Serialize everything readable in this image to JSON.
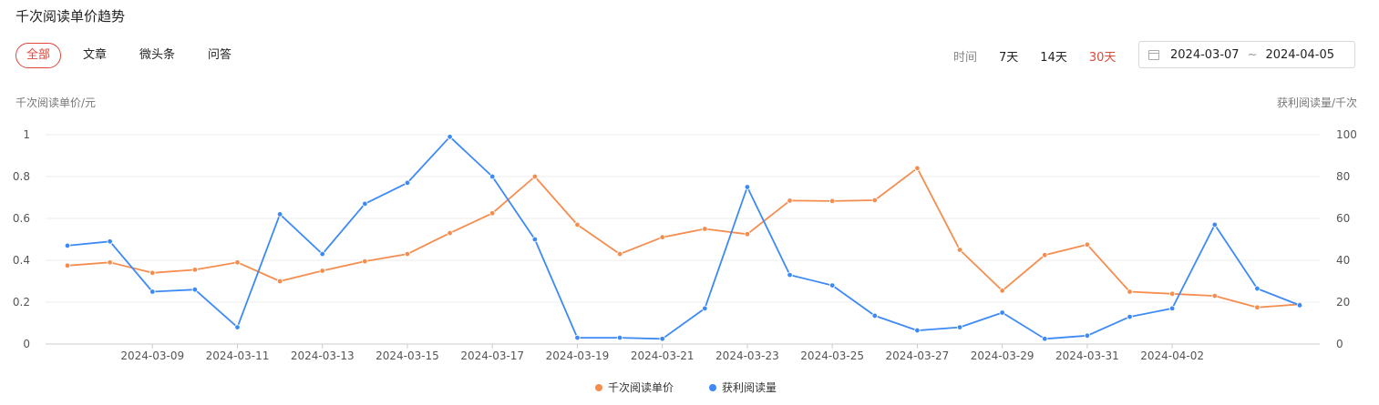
{
  "title": "千次阅读单价趋势",
  "tabs": [
    {
      "label": "全部",
      "active": true
    },
    {
      "label": "文章",
      "active": false
    },
    {
      "label": "微头条",
      "active": false
    },
    {
      "label": "问答",
      "active": false
    }
  ],
  "range": {
    "label": "时间",
    "options": [
      {
        "label": "7天",
        "active": false
      },
      {
        "label": "14天",
        "active": false
      },
      {
        "label": "30天",
        "active": true
      }
    ]
  },
  "date_range": {
    "start": "2024-03-07",
    "separator": "~",
    "end": "2024-04-05"
  },
  "colors": {
    "accent": "#e0483d",
    "price": "#f58d4f",
    "reads": "#3d8af7"
  },
  "chart_data": {
    "type": "line",
    "left_axis_label": "千次阅读单价/元",
    "right_axis_label": "获利阅读量/千次",
    "ylim_left": [
      0,
      1
    ],
    "ylim_right": [
      0,
      100
    ],
    "left_ticks": [
      "0",
      "0.2",
      "0.4",
      "0.6",
      "0.8",
      "1"
    ],
    "right_ticks": [
      "0",
      "20",
      "40",
      "60",
      "80",
      "100"
    ],
    "x": [
      "2024-03-07",
      "2024-03-08",
      "2024-03-09",
      "2024-03-10",
      "2024-03-11",
      "2024-03-12",
      "2024-03-13",
      "2024-03-14",
      "2024-03-15",
      "2024-03-16",
      "2024-03-17",
      "2024-03-18",
      "2024-03-19",
      "2024-03-20",
      "2024-03-21",
      "2024-03-22",
      "2024-03-23",
      "2024-03-24",
      "2024-03-25",
      "2024-03-26",
      "2024-03-27",
      "2024-03-28",
      "2024-03-29",
      "2024-03-30",
      "2024-03-31",
      "2024-04-01",
      "2024-04-02",
      "2024-04-03",
      "2024-04-04",
      "2024-04-05"
    ],
    "x_tick_labels": [
      "2024-03-09",
      "2024-03-11",
      "2024-03-13",
      "2024-03-15",
      "2024-03-17",
      "2024-03-19",
      "2024-03-21",
      "2024-03-23",
      "2024-03-25",
      "2024-03-27",
      "2024-03-29",
      "2024-03-31",
      "2024-04-02"
    ],
    "grid": true,
    "legend_position": "bottom-center",
    "series": [
      {
        "name": "千次阅读单价",
        "axis": "left",
        "values": [
          0.375,
          0.39,
          0.34,
          0.355,
          0.39,
          0.3,
          0.35,
          0.395,
          0.43,
          0.53,
          0.625,
          0.8,
          0.57,
          0.43,
          0.51,
          0.55,
          0.525,
          0.685,
          0.683,
          0.687,
          0.84,
          0.45,
          0.255,
          0.425,
          0.475,
          0.25,
          0.24,
          0.23,
          0.175,
          0.19
        ]
      },
      {
        "name": "获利阅读量",
        "axis": "right",
        "values": [
          47,
          49,
          25,
          26,
          8,
          62,
          43,
          67,
          77,
          99,
          80,
          50,
          3,
          3,
          2.5,
          17,
          75,
          33,
          28,
          13.5,
          6.5,
          8,
          15,
          2.5,
          4,
          13,
          17,
          57,
          26.5,
          18.5
        ]
      }
    ]
  }
}
